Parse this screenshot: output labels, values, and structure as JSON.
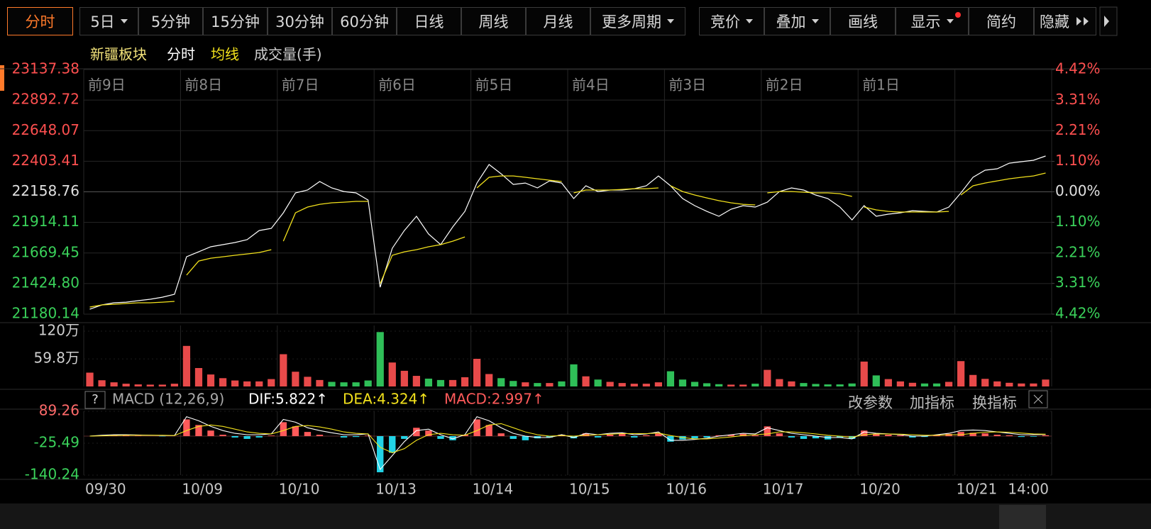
{
  "ui": {
    "toolbar": [
      "分时",
      "5日",
      "5分钟",
      "15分钟",
      "30分钟",
      "60分钟",
      "日线",
      "周线",
      "月线",
      "更多周期",
      "竞价",
      "叠加",
      "画线",
      "显示",
      "简约",
      "隐藏"
    ],
    "help": "?",
    "panel_actions": [
      "改参数",
      "加指标",
      "换指标"
    ]
  },
  "chart_data": [
    {
      "type": "line",
      "title": "新疆板块",
      "grid": true,
      "up_color": "#ff5050",
      "down_color": "#3ad15a",
      "day_tags": [
        "前9日",
        "前8日",
        "前7日",
        "前6日",
        "前5日",
        "前4日",
        "前3日",
        "前2日",
        "前1日"
      ],
      "ylim": [
        21180.14,
        23137.38
      ],
      "yticks": [
        23137.38,
        22892.72,
        22648.07,
        22403.41,
        22158.76,
        21914.11,
        21669.45,
        {
          "value": 21424.8,
          "label": "21424.80"
        },
        21180.14
      ],
      "y2lim": [
        -4.42,
        4.42
      ],
      "y2ticks": [
        {
          "value": 4.42,
          "label": "4.42%"
        },
        {
          "value": 3.31,
          "label": "3.31%"
        },
        {
          "value": 2.21,
          "label": "2.21%"
        },
        {
          "value": 1.1,
          "label": "1.10%"
        },
        {
          "value": 0,
          "label": "0.00%"
        },
        {
          "value": -1.1,
          "label": "1.10%"
        },
        {
          "value": -2.21,
          "label": "2.21%"
        },
        {
          "value": -3.31,
          "label": "3.31%"
        },
        {
          "value": -4.42,
          "label": "4.42%"
        }
      ],
      "series": [
        {
          "name": "分时",
          "color": "#ffffff",
          "values": [
            [
              21220,
              21254,
              21271,
              21276,
              21288,
              21299,
              21316,
              21339
            ],
            [
              21639,
              21679,
              21719,
              21736,
              21753,
              21776,
              21849,
              21866
            ],
            [
              21991,
              22150,
              22173,
              22241,
              22190,
              22161,
              22150,
              22093
            ],
            [
              21395,
              21707,
              21849,
              21963,
              21821,
              21736,
              21878,
              22002
            ],
            [
              22229,
              22377,
              22303,
              22218,
              22229,
              22190,
              22246,
              22229
            ],
            [
              22105,
              22207,
              22161,
              22173,
              22173,
              22184,
              22207,
              22286
            ],
            [
              22207,
              22105,
              22048,
              22002,
              21963,
              22020,
              22048,
              22037
            ],
            [
              22076,
              22161,
              22190,
              22173,
              22133,
              22105,
              22037,
              21934
            ],
            [
              22048,
              21963,
              21980,
              21991,
              22008,
              22002,
              21997,
              22037
            ],
            [
              22150,
              22275,
              22332,
              22343,
              22388,
              22400,
              22411,
              22445
            ]
          ]
        },
        {
          "name": "均线",
          "color": "#f2e11c",
          "values": [
            [
              21237,
              21254,
              21259,
              21265,
              21271,
              21271,
              21276,
              21282
            ],
            [
              21492,
              21605,
              21628,
              21639,
              21651,
              21662,
              21673,
              21696
            ],
            [
              21764,
              21991,
              22037,
              22059,
              22071,
              22076,
              22082,
              22082
            ],
            [
              21424,
              21651,
              21679,
              21696,
              21719,
              21736,
              21764,
              21798
            ],
            [
              22190,
              22275,
              22286,
              22286,
              22275,
              22263,
              22252,
              22241
            ],
            [
              22150,
              22173,
              22173,
              22173,
              22178,
              22184,
              22184,
              22190
            ],
            [
              22207,
              22161,
              22133,
              22110,
              22088,
              22071,
              22059,
              22054
            ],
            [
              22150,
              22161,
              22161,
              22156,
              22150,
              22150,
              22144,
              22122
            ],
            [
              22037,
              22014,
              22002,
              21997,
              21997,
              21997,
              21997,
              22002
            ],
            [
              22133,
              22207,
              22229,
              22246,
              22263,
              22275,
              22286,
              22309
            ]
          ]
        }
      ]
    },
    {
      "type": "bar",
      "title": "成交量(手)",
      "up_color": "#e84a4a",
      "down_color": "#2fbf58",
      "ylim": [
        0,
        1200000
      ],
      "yticks": [
        {
          "value": 1200000,
          "label": "120万"
        },
        {
          "value": 598000,
          "label": "59.8万"
        }
      ],
      "values": [
        [
          300000,
          135000,
          90000,
          60000,
          45000,
          40000,
          40000,
          60000
        ],
        [
          880000,
          400000,
          260000,
          180000,
          130000,
          110000,
          110000,
          160000
        ],
        [
          700000,
          320000,
          210000,
          140000,
          100000,
          90000,
          90000,
          130000
        ],
        [
          1180000,
          520000,
          340000,
          230000,
          170000,
          140000,
          140000,
          200000
        ],
        [
          600000,
          270000,
          180000,
          120000,
          90000,
          75000,
          75000,
          110000
        ],
        [
          480000,
          220000,
          150000,
          100000,
          75000,
          60000,
          60000,
          90000
        ],
        [
          330000,
          150000,
          100000,
          70000,
          50000,
          40000,
          40000,
          60000
        ],
        [
          360000,
          160000,
          110000,
          75000,
          55000,
          45000,
          45000,
          65000
        ],
        [
          540000,
          240000,
          160000,
          110000,
          80000,
          65000,
          65000,
          100000
        ],
        [
          550000,
          250000,
          165000,
          110000,
          80000,
          65000,
          65000,
          150000
        ]
      ]
    },
    {
      "type": "macd",
      "title": "MACD (12,26,9)",
      "down_color": "#22d3e6",
      "categories": [
        "09/30",
        "10/09",
        "10/10",
        "10/13",
        "10/14",
        "10/15",
        "10/16",
        "10/17",
        "10/20",
        "10/21"
      ],
      "time_label": "14:00",
      "ylim": [
        -140.24,
        89.26
      ],
      "yticks": [
        89.26,
        -25.49,
        -140.24
      ],
      "series": [
        {
          "name": "DIF:5.822↑",
          "color": "#ffffff",
          "values": [
            [
              0,
              3,
              5,
              5,
              4,
              3,
              2,
              2
            ],
            [
              70,
              55,
              35,
              20,
              10,
              5,
              5,
              8
            ],
            [
              60,
              50,
              30,
              20,
              12,
              5,
              5,
              8
            ],
            [
              -120,
              -70,
              -20,
              20,
              25,
              5,
              -10,
              5
            ],
            [
              70,
              55,
              30,
              10,
              0,
              -5,
              -5,
              5
            ],
            [
              -5,
              10,
              5,
              10,
              12,
              5,
              8,
              15
            ],
            [
              -15,
              -15,
              -12,
              -8,
              0,
              5,
              10,
              8
            ],
            [
              30,
              20,
              10,
              5,
              0,
              -5,
              -5,
              -10
            ],
            [
              15,
              10,
              8,
              5,
              0,
              0,
              5,
              10
            ],
            [
              20,
              22,
              20,
              15,
              10,
              5,
              5,
              6
            ]
          ]
        },
        {
          "name": "DEA:4.324↑",
          "color": "#f2e11c",
          "values": [
            [
              0,
              1,
              2,
              3,
              3,
              3,
              3,
              2
            ],
            [
              20,
              35,
              40,
              35,
              25,
              15,
              10,
              8
            ],
            [
              20,
              35,
              38,
              33,
              25,
              15,
              10,
              8
            ],
            [
              -40,
              -60,
              -45,
              -15,
              5,
              10,
              5,
              3
            ],
            [
              20,
              40,
              45,
              30,
              15,
              5,
              0,
              2
            ],
            [
              0,
              3,
              5,
              7,
              9,
              9,
              9,
              11
            ],
            [
              2,
              -5,
              -10,
              -10,
              -7,
              -3,
              2,
              5
            ],
            [
              8,
              15,
              15,
              12,
              8,
              3,
              0,
              -4
            ],
            [
              5,
              8,
              8,
              7,
              5,
              3,
              3,
              5
            ],
            [
              5,
              10,
              14,
              15,
              14,
              11,
              8,
              7
            ]
          ]
        },
        {
          "name": "MACD:2.997↑",
          "color": "#ff5a5a",
          "values": [
            [
              0,
              2,
              3,
              2,
              1,
              0,
              -1,
              0
            ],
            [
              60,
              40,
              20,
              5,
              -5,
              -10,
              -5,
              2
            ],
            [
              50,
              35,
              15,
              5,
              0,
              -5,
              -3,
              2
            ],
            [
              -130,
              -60,
              -10,
              30,
              20,
              -10,
              -15,
              5
            ],
            [
              60,
              40,
              10,
              -10,
              -15,
              -8,
              -5,
              5
            ],
            [
              -8,
              10,
              -5,
              5,
              8,
              -5,
              3,
              10
            ],
            [
              -20,
              -12,
              -8,
              -5,
              3,
              5,
              8,
              3
            ],
            [
              35,
              10,
              -5,
              -10,
              -8,
              -12,
              -5,
              -10
            ],
            [
              20,
              8,
              5,
              3,
              -5,
              -3,
              5,
              8
            ],
            [
              15,
              12,
              10,
              5,
              3,
              -3,
              -2,
              3
            ]
          ]
        }
      ]
    }
  ]
}
